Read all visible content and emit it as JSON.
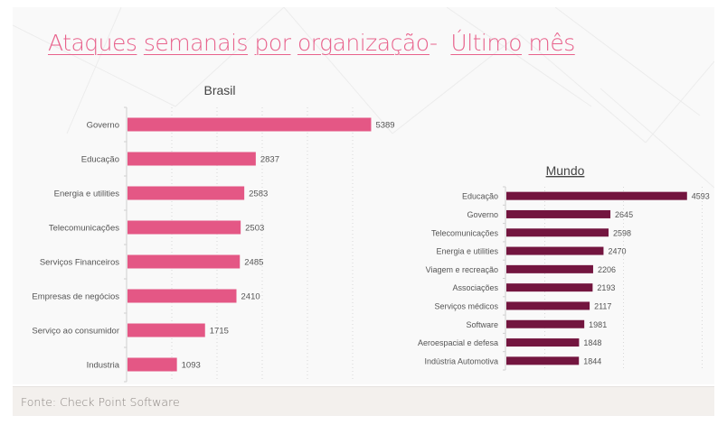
{
  "title": {
    "words": [
      "Ataques",
      "semanais",
      "por",
      "organização",
      "-",
      "Último",
      "mês"
    ]
  },
  "footer": {
    "source": "Fonte: Check Point Software"
  },
  "colors": {
    "brasil_bar": "#e45785",
    "mundo_bar": "#73153f",
    "title": "#e8628c"
  },
  "chart_data": [
    {
      "type": "bar",
      "orientation": "horizontal",
      "title": "Brasil",
      "categories": [
        "Governo",
        "Educação",
        "Energia e utilities",
        "Telecomunicações",
        "Serviços Financeiros",
        "Empresas de negócios",
        "Serviço ao consumidor",
        "Industria"
      ],
      "values": [
        5389,
        2837,
        2583,
        2503,
        2485,
        2410,
        1715,
        1093
      ],
      "xlim": [
        0,
        6000
      ],
      "gridlines": [
        1000,
        2000,
        3000,
        4000,
        5000
      ],
      "grid": true,
      "data_labels": true,
      "xlabel": "",
      "ylabel": ""
    },
    {
      "type": "bar",
      "orientation": "horizontal",
      "title": "Mundo",
      "categories": [
        "Educação",
        "Governo",
        "Telecomunicações",
        "Energia e utilities",
        "Viagem e recreação",
        "Associações",
        "Serviços médicos",
        "Software",
        "Aeroespacial e defesa",
        "Indústria Automotiva"
      ],
      "values": [
        4593,
        2645,
        2598,
        2470,
        2206,
        2193,
        2117,
        1981,
        1848,
        1844
      ],
      "xlim": [
        0,
        5000
      ],
      "gridlines": [
        1000,
        3000,
        5000
      ],
      "grid": true,
      "data_labels": true,
      "xlabel": "",
      "ylabel": ""
    }
  ]
}
